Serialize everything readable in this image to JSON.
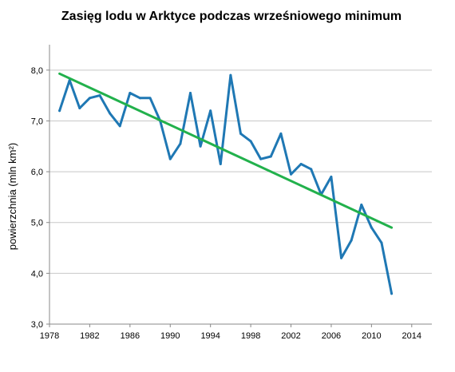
{
  "chart_data": {
    "type": "line",
    "title": "Zasięg lodu w Arktyce podczas wrześniowego minimum",
    "xlabel": "",
    "ylabel": "powierzchnia (mln km²)",
    "xlim": [
      1978,
      2016
    ],
    "ylim": [
      3.0,
      8.5
    ],
    "x_ticks": [
      1978,
      1982,
      1986,
      1990,
      1994,
      1998,
      2002,
      2006,
      2010,
      2014
    ],
    "y_ticks": [
      3.0,
      4.0,
      5.0,
      6.0,
      7.0,
      8.0
    ],
    "y_tick_labels": [
      "3,0",
      "4,0",
      "5,0",
      "6,0",
      "7,0",
      "8,0"
    ],
    "grid": "horizontal",
    "legend": "none",
    "series": [
      {
        "color": "#1f78b4",
        "x": [
          1979,
          1980,
          1981,
          1982,
          1983,
          1984,
          1985,
          1986,
          1987,
          1988,
          1989,
          1990,
          1991,
          1992,
          1993,
          1994,
          1995,
          1996,
          1997,
          1998,
          1999,
          2000,
          2001,
          2002,
          2003,
          2004,
          2005,
          2006,
          2007,
          2008,
          2009,
          2010,
          2011,
          2012
        ],
        "y": [
          7.2,
          7.8,
          7.25,
          7.45,
          7.5,
          7.15,
          6.9,
          7.55,
          7.45,
          7.45,
          7.0,
          6.25,
          6.55,
          7.55,
          6.5,
          7.2,
          6.15,
          7.9,
          6.75,
          6.6,
          6.25,
          6.3,
          6.75,
          5.95,
          6.15,
          6.05,
          5.55,
          5.9,
          4.3,
          4.65,
          5.35,
          4.9,
          4.6,
          3.6
        ]
      },
      {
        "color": "#22b14c",
        "x": [
          1979,
          2012
        ],
        "y": [
          7.93,
          4.9
        ]
      }
    ]
  }
}
